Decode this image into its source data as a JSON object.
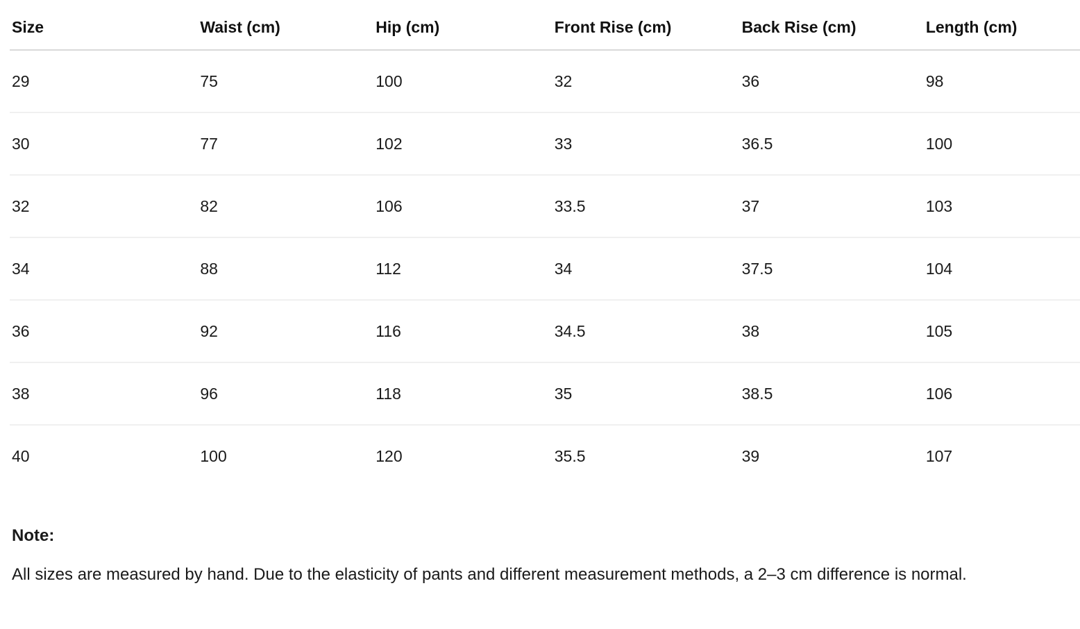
{
  "table": {
    "columns": [
      "Size",
      "Waist (cm)",
      "Hip (cm)",
      "Front Rise (cm)",
      "Back Rise (cm)",
      "Length (cm)"
    ],
    "rows": [
      [
        "29",
        "75",
        "100",
        "32",
        "36",
        "98"
      ],
      [
        "30",
        "77",
        "102",
        "33",
        "36.5",
        "100"
      ],
      [
        "32",
        "82",
        "106",
        "33.5",
        "37",
        "103"
      ],
      [
        "34",
        "88",
        "112",
        "34",
        "37.5",
        "104"
      ],
      [
        "36",
        "92",
        "116",
        "34.5",
        "38",
        "105"
      ],
      [
        "38",
        "96",
        "118",
        "35",
        "38.5",
        "106"
      ],
      [
        "40",
        "100",
        "120",
        "35.5",
        "39",
        "107"
      ]
    ]
  },
  "note": {
    "title": "Note:",
    "body": "All sizes are measured by hand. Due to the elasticity of pants and different measurement methods, a 2–3 cm difference is normal."
  },
  "colors": {
    "background": "#ffffff",
    "text": "#1a1a1a",
    "header_text": "#111111",
    "header_border": "#d9d9d9",
    "row_border": "#f0f0f0"
  }
}
